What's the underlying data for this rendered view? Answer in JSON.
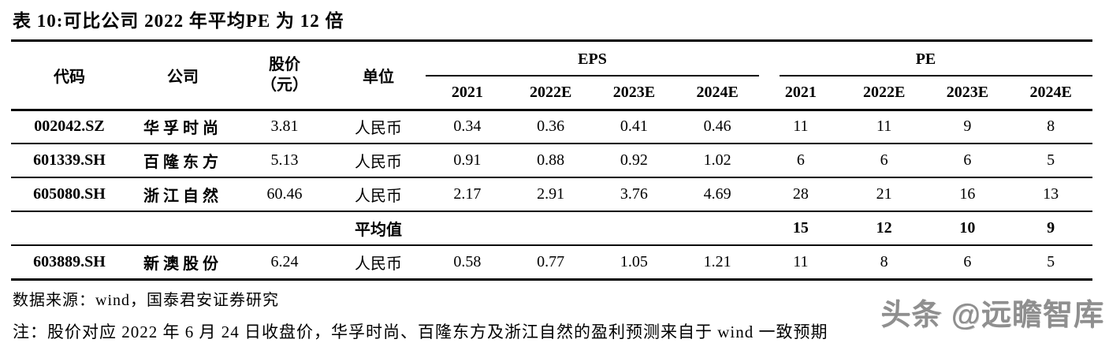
{
  "title": "表 10:可比公司 2022 年平均PE 为 12 倍",
  "table": {
    "headers": {
      "code": "代码",
      "company": "公司",
      "price_l1": "股价",
      "price_l2": "（元）",
      "unit": "单位",
      "eps_group": "EPS",
      "pe_group": "PE",
      "years": [
        "2021",
        "2022E",
        "2023E",
        "2024E"
      ]
    },
    "rows": [
      {
        "code": "002042.SZ",
        "company": "华孚时尚",
        "price": "3.81",
        "unit": "人民币",
        "eps": [
          "0.34",
          "0.36",
          "0.41",
          "0.46"
        ],
        "pe": [
          "11",
          "11",
          "9",
          "8"
        ]
      },
      {
        "code": "601339.SH",
        "company": "百隆东方",
        "price": "5.13",
        "unit": "人民币",
        "eps": [
          "0.91",
          "0.88",
          "0.92",
          "1.02"
        ],
        "pe": [
          "6",
          "6",
          "6",
          "5"
        ]
      },
      {
        "code": "605080.SH",
        "company": "浙江自然",
        "price": "60.46",
        "unit": "人民币",
        "eps": [
          "2.17",
          "2.91",
          "3.76",
          "4.69"
        ],
        "pe": [
          "28",
          "21",
          "16",
          "13"
        ]
      },
      {
        "label": "平均值",
        "pe": [
          "15",
          "12",
          "10",
          "9"
        ]
      },
      {
        "code": "603889.SH",
        "company": "新澳股份",
        "price": "6.24",
        "unit": "人民币",
        "eps": [
          "0.58",
          "0.77",
          "1.05",
          "1.21"
        ],
        "pe": [
          "11",
          "8",
          "6",
          "5"
        ]
      }
    ]
  },
  "footer": {
    "source": "数据来源：wind，国泰君安证券研究",
    "note": "注：股价对应 2022 年 6 月 24 日收盘价，华孚时尚、百隆东方及浙江自然的盈利预测来自于 wind 一致预期"
  },
  "watermark": "头条 @远瞻智库"
}
